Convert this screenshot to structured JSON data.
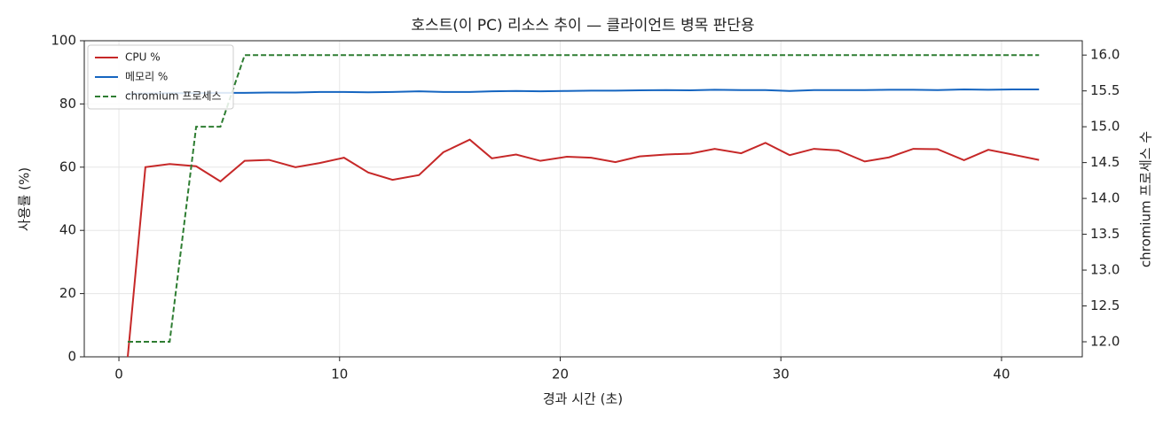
{
  "chart_data": {
    "type": "line",
    "title": "호스트(이 PC) 리소스 추이 — 클라이언트 병목 판단용",
    "x_label": "경과 시간 (초)",
    "y_label": "사용률 (%)",
    "y2_label": "chromium 프로세스 수",
    "x": [
      0.4,
      1.2,
      2.3,
      3.5,
      4.6,
      5.7,
      6.8,
      8.0,
      9.1,
      10.2,
      11.3,
      12.4,
      13.6,
      14.7,
      15.9,
      16.9,
      18.0,
      19.1,
      20.3,
      21.4,
      22.5,
      23.6,
      24.8,
      25.9,
      27.0,
      28.2,
      29.3,
      30.4,
      31.5,
      32.6,
      33.8,
      34.9,
      36.0,
      37.1,
      38.3,
      39.4,
      40.5,
      41.7
    ],
    "series": [
      {
        "name": "CPU %",
        "color": "#c62828",
        "style": "solid",
        "values": [
          0,
          60,
          61,
          60.3,
          55.5,
          62,
          62.3,
          60,
          61.3,
          63,
          58.3,
          56,
          57.5,
          64.7,
          68.7,
          62.8,
          64,
          62,
          63.3,
          63,
          61.6,
          63.4,
          64,
          64.3,
          65.8,
          64.4,
          67.7,
          63.8,
          65.8,
          65.3,
          61.8,
          63.1,
          65.8,
          65.7,
          62.2,
          65.5,
          64,
          62.3
        ]
      },
      {
        "name": "메모리 %",
        "color": "#1565c0",
        "style": "solid",
        "values": [
          83.2,
          83.3,
          83.4,
          83.4,
          83.5,
          83.5,
          83.6,
          83.6,
          83.8,
          83.8,
          83.7,
          83.8,
          84,
          83.8,
          83.8,
          84,
          84.1,
          84,
          84.1,
          84.2,
          84.2,
          84.3,
          84.4,
          84.3,
          84.5,
          84.4,
          84.4,
          84.1,
          84.4,
          84.4,
          84.4,
          84.5,
          84.5,
          84.4,
          84.6,
          84.5,
          84.6,
          84.6
        ]
      },
      {
        "name": "chromium 프로세스",
        "color": "#2e7d32",
        "style": "dashed",
        "axis": "y2",
        "values": [
          12,
          12,
          12,
          15,
          15,
          16,
          16,
          16,
          16,
          16,
          16,
          16,
          16,
          16,
          16,
          16,
          16,
          16,
          16,
          16,
          16,
          16,
          16,
          16,
          16,
          16,
          16,
          16,
          16,
          16,
          16,
          16,
          16,
          16,
          16,
          16,
          16,
          16
        ]
      }
    ],
    "xlim": [
      -1.57,
      43.66
    ],
    "xticks": [
      0,
      10,
      20,
      30,
      40
    ],
    "ylim": [
      0,
      100
    ],
    "yticks": [
      0,
      20,
      40,
      60,
      80,
      100
    ],
    "y2lim": [
      11.79,
      16.2
    ],
    "y2ticks": [
      {
        "value": 12,
        "label": "12.0"
      },
      {
        "value": 12.5,
        "label": "12.5"
      },
      {
        "value": 13,
        "label": "13.0"
      },
      {
        "value": 13.5,
        "label": "13.5"
      },
      {
        "value": 14,
        "label": "14.0"
      },
      {
        "value": 14.5,
        "label": "14.5"
      },
      {
        "value": 15,
        "label": "15.0"
      },
      {
        "value": 15.5,
        "label": "15.5"
      },
      {
        "value": 16,
        "label": "16.0"
      }
    ],
    "grid": true,
    "legend": "upper-left"
  }
}
